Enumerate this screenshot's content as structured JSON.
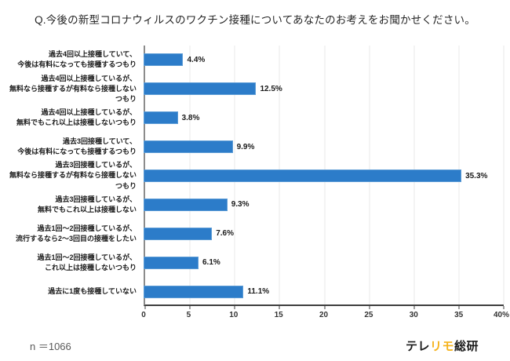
{
  "title": "Q.今後の新型コロナウィルスのワクチン接種についてあなたのお考えをお聞かせください。",
  "chart_data": {
    "type": "bar",
    "orientation": "horizontal",
    "categories": [
      "過去4回以上接種していて、\n今後は有料になっても接種するつもり",
      "過去4回以上接種しているが、\n無料なら接種するが有料なら接種しないつもり",
      "過去4回以上接種しているが、\n無料でもこれ以上は接種しないつもり",
      "過去3回接種していて、\n今後は有料になっても接種するつもり",
      "過去3回接種しているが、\n無料なら接種するが有料なら接種しないつもり",
      "過去3回接種しているが、\n無料でもこれ以上は接種しない",
      "過去1回～2回接種しているが、\n流行するなら2～3回目の接種をしたい",
      "過去1回～2回接種しているが、\nこれ以上は接種しないつもり",
      "過去に1度も接種していない"
    ],
    "values": [
      4.4,
      12.5,
      3.8,
      9.9,
      35.3,
      9.3,
      7.6,
      6.1,
      11.1
    ],
    "value_labels": [
      "4.4%",
      "12.5%",
      "3.8%",
      "9.9%",
      "35.3%",
      "9.3%",
      "7.6%",
      "6.1%",
      "11.1%"
    ],
    "xlabel": "",
    "ylabel": "",
    "xlim": [
      0,
      40
    ],
    "x_ticks": [
      "0",
      "5",
      "10",
      "15",
      "20",
      "25",
      "30",
      "35",
      "40%"
    ],
    "grid": true,
    "legend": "none"
  },
  "footer": {
    "sample_size": "n ＝1066",
    "logo": {
      "part1": "テレ",
      "part2": "リモ",
      "part3": "総研"
    }
  },
  "colors": {
    "bar": "#2C7CC9",
    "logo_accent": "#F5B21B",
    "gridline": "#EAEAEA",
    "axis": "#3F3F3F"
  }
}
